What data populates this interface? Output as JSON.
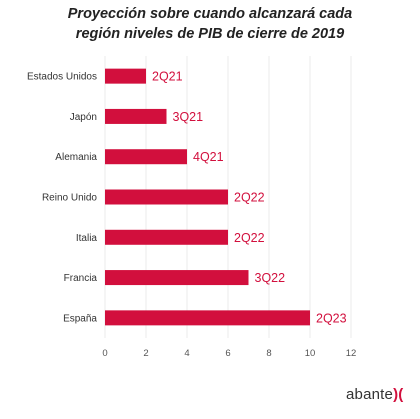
{
  "title": {
    "line1": "Proyección sobre cuando alcanzará cada",
    "line2": "región niveles de PIB de cierre de 2019"
  },
  "chart_data": {
    "type": "bar",
    "orientation": "horizontal",
    "categories": [
      "Estados Unidos",
      "Japón",
      "Alemania",
      "Reino Unido",
      "Italia",
      "Francia",
      "España"
    ],
    "values": [
      2,
      3,
      4,
      6,
      6,
      7,
      10
    ],
    "data_labels": [
      "2Q21",
      "3Q21",
      "4Q21",
      "2Q22",
      "2Q22",
      "3Q22",
      "2Q23"
    ],
    "xlim": [
      0,
      12
    ],
    "xticks": [
      0,
      2,
      4,
      6,
      8,
      10,
      12
    ],
    "grid": true,
    "bar_color": "#d20f3d",
    "label_color": "#d20f3d"
  },
  "logo": {
    "text": "abante",
    "mark": ")("
  }
}
